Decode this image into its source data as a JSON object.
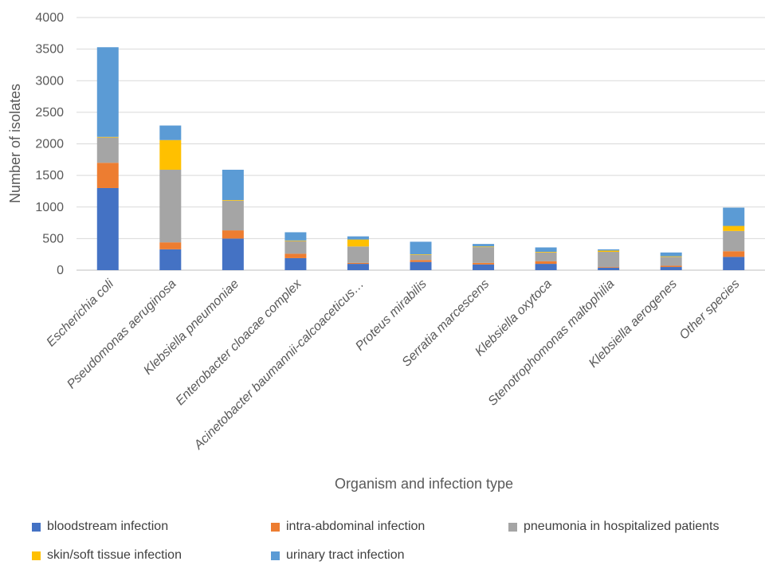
{
  "chart_data": {
    "type": "bar",
    "stacked": true,
    "title": "",
    "xlabel": "Organism and infection type",
    "ylabel": "Number of isolates",
    "ylim": [
      0,
      4000
    ],
    "yticks": [
      0,
      500,
      1000,
      1500,
      2000,
      2500,
      3000,
      3500,
      4000
    ],
    "grid": true,
    "legend_position": "bottom",
    "categories": [
      "Escherichia coli",
      "Pseudomonas aeruginosa",
      "Klebsiella pneumoniae",
      "Enterobacter cloacae complex",
      "Acinetobacter baumannii-calcoaceticus…",
      "Proteus mirabilis",
      "Serratia marcescens",
      "Klebsiella oxytoca",
      "Stenotrophomonas maltophilia",
      "Klebsiella aerogenes",
      "Other species"
    ],
    "series": [
      {
        "name": "bloodstream infection",
        "color": "#4472C4",
        "values": [
          1300,
          330,
          500,
          190,
          100,
          130,
          90,
          100,
          40,
          50,
          210
        ]
      },
      {
        "name": "intra-abdominal infection",
        "color": "#ED7D31",
        "values": [
          400,
          110,
          130,
          70,
          15,
          30,
          25,
          40,
          10,
          20,
          90
        ]
      },
      {
        "name": "pneumonia in hospitalized patients",
        "color": "#A5A5A5",
        "values": [
          400,
          1150,
          470,
          200,
          260,
          80,
          250,
          140,
          240,
          140,
          320
        ]
      },
      {
        "name": "skin/soft tissue infection",
        "color": "#FFC000",
        "values": [
          10,
          470,
          10,
          10,
          110,
          10,
          10,
          10,
          20,
          10,
          80
        ]
      },
      {
        "name": "urinary tract infection",
        "color": "#5B9BD5",
        "values": [
          1420,
          230,
          480,
          130,
          50,
          200,
          40,
          70,
          20,
          60,
          290
        ]
      }
    ]
  }
}
